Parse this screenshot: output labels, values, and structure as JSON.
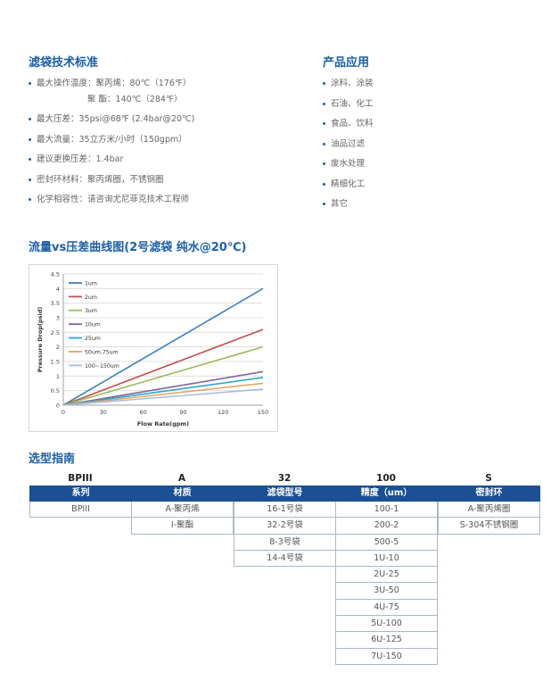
{
  "standards": {
    "title": "滤袋技术标准",
    "items": [
      {
        "text": "最大操作温度：聚丙烯：80℃（176℉）",
        "cont": false
      },
      {
        "text": "聚    酯：140℃（284℉）",
        "cont": true
      },
      {
        "text": "最大压差：35psi@68℉ (2.4bar@20℃)",
        "cont": false
      },
      {
        "text": "最大流量：35立方米/小时（150gpm）",
        "cont": false
      },
      {
        "text": "建议更换压差：1.4bar",
        "cont": false
      },
      {
        "text": "密封环材料：聚丙烯圈，不锈钢圈",
        "cont": false
      },
      {
        "text": "化学相容性：请咨询尤尼菲克技术工程师",
        "cont": false
      }
    ]
  },
  "applications": {
    "title": "产品应用",
    "items": [
      "涂料、涂装",
      "石油、化工",
      "食品、饮料",
      "油品过滤",
      "废水处理",
      "精细化工",
      "其它"
    ]
  },
  "chart_section": {
    "title": "流量vs压差曲线图(2号滤袋 纯水@20℃)"
  },
  "chart_data": {
    "type": "line",
    "title": "",
    "xlabel": "Flow Rate(gpm)",
    "ylabel": "Pressure Drop(psid)",
    "xlim": [
      0,
      150
    ],
    "ylim": [
      0,
      4.5
    ],
    "xticks": [
      0,
      30,
      60,
      90,
      120,
      150
    ],
    "yticks": [
      0,
      0.5,
      1,
      1.5,
      2,
      2.5,
      3,
      3.5,
      4,
      4.5
    ],
    "grid": true,
    "legend_position": "top-left",
    "x": [
      0,
      150
    ],
    "series": [
      {
        "name": "1um",
        "color": "#3a7fc1",
        "values": [
          0,
          4.0
        ]
      },
      {
        "name": "2um",
        "color": "#c0504d",
        "values": [
          0,
          2.6
        ]
      },
      {
        "name": "3um",
        "color": "#9bbb59",
        "values": [
          0,
          2.0
        ]
      },
      {
        "name": "10um",
        "color": "#8064a2",
        "values": [
          0,
          1.15
        ]
      },
      {
        "name": "25um",
        "color": "#2ea6c9",
        "values": [
          0,
          0.95
        ]
      },
      {
        "name": "50um,75um",
        "color": "#e8a25a",
        "values": [
          0,
          0.75
        ]
      },
      {
        "name": "100~150um",
        "color": "#a8bde0",
        "values": [
          0,
          0.55
        ]
      }
    ]
  },
  "selection": {
    "title": "选型指南",
    "code": [
      "BPIII",
      "A",
      "32",
      "100",
      "S"
    ],
    "columns": [
      {
        "header": "系列",
        "rows": [
          "BPIII"
        ]
      },
      {
        "header": "材质",
        "rows": [
          "A-聚丙烯",
          "I-聚酯"
        ]
      },
      {
        "header": "滤袋型号",
        "rows": [
          "16-1号袋",
          "32-2号袋",
          "8-3号袋",
          "14-4号袋"
        ]
      },
      {
        "header": "精度（um）",
        "rows": [
          "100-1",
          "200-2",
          "500-5",
          "1U-10",
          "2U-25",
          "3U-50",
          "4U-75",
          "5U-100",
          "6U-125",
          "7U-150"
        ]
      },
      {
        "header": "密封环",
        "rows": [
          "A-聚丙烯圈",
          "S-304不锈钢圈"
        ]
      }
    ]
  }
}
